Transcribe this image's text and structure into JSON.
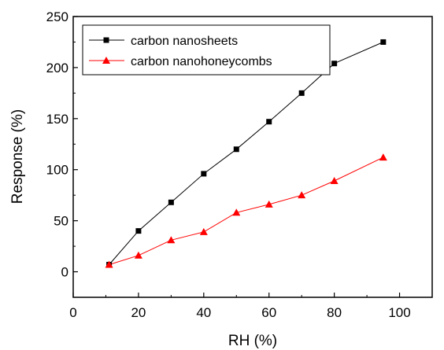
{
  "chart_data": {
    "type": "line",
    "xlabel": "RH (%)",
    "ylabel": "Response (%)",
    "xlim": [
      0,
      110
    ],
    "ylim": [
      -25,
      250
    ],
    "xticks": [
      0,
      20,
      40,
      60,
      80,
      100
    ],
    "yticks": [
      0,
      50,
      100,
      150,
      200,
      250
    ],
    "xtick_labels": [
      "0",
      "20",
      "40",
      "60",
      "80",
      "100"
    ],
    "ytick_labels": [
      "0",
      "50",
      "100",
      "150",
      "200",
      "250"
    ],
    "grid": false,
    "legend_position": "top-left",
    "series": [
      {
        "name": "carbon nanosheets",
        "color": "#000000",
        "marker": "square",
        "x": [
          11,
          20,
          30,
          40,
          50,
          60,
          70,
          80,
          95
        ],
        "y": [
          7,
          40,
          68,
          96,
          120,
          147,
          175,
          204,
          225
        ]
      },
      {
        "name": "carbon nanohoneycombs",
        "color": "#ff0000",
        "marker": "triangle",
        "x": [
          11,
          20,
          30,
          40,
          50,
          60,
          70,
          80,
          95
        ],
        "y": [
          7,
          16,
          31,
          39,
          58,
          66,
          75,
          89,
          112
        ]
      }
    ]
  }
}
